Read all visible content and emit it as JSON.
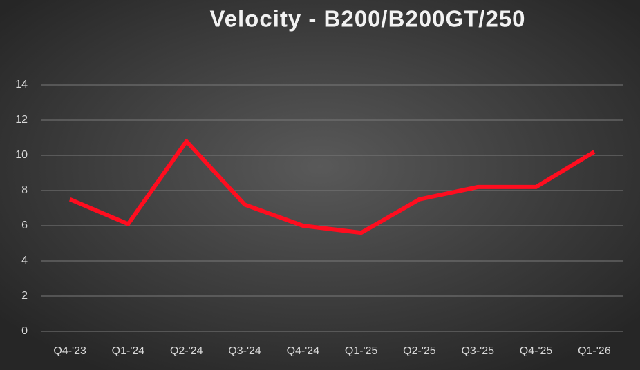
{
  "chart_data": {
    "type": "line",
    "title": "Velocity - B200/B200GT/250",
    "categories": [
      "Q4-'23",
      "Q1-'24",
      "Q2-'24",
      "Q3-'24",
      "Q4-'24",
      "Q1-'25",
      "Q2-'25",
      "Q3-'25",
      "Q4-'25",
      "Q1-'26"
    ],
    "series": [
      {
        "name": "Velocity",
        "color": "#ff0d1f",
        "values": [
          7.5,
          6.1,
          10.8,
          7.2,
          6.0,
          5.6,
          7.5,
          8.2,
          8.2,
          10.2
        ]
      }
    ],
    "ylim": [
      0,
      14
    ],
    "yticks": [
      0,
      2,
      4,
      6,
      8,
      10,
      12,
      14
    ],
    "grid": true
  }
}
